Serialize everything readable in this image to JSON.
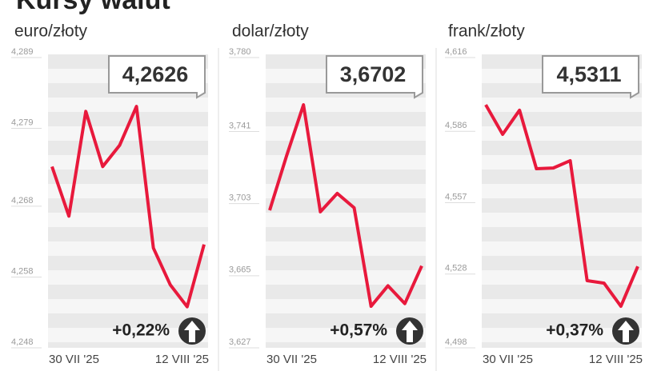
{
  "title": "Kursy walut",
  "chart_data": [
    {
      "type": "line",
      "title": "euro/złoty",
      "color": "#e8193c",
      "categories": [
        "30 VII '25",
        null,
        null,
        null,
        null,
        null,
        null,
        null,
        null,
        "12 VIII '25"
      ],
      "values": [
        4.2736,
        4.2666,
        4.2814,
        4.2736,
        4.2766,
        4.2821,
        4.2621,
        4.2569,
        4.2538,
        4.2626
      ],
      "ylim": [
        4.248,
        4.289
      ],
      "yticks": [
        {
          "value": 4.248,
          "label": "4,248"
        },
        {
          "value": 4.258,
          "label": "4,258"
        },
        {
          "value": 4.268,
          "label": "4,268"
        },
        {
          "value": 4.279,
          "label": "4,279"
        },
        {
          "value": 4.289,
          "label": "4,289"
        }
      ],
      "value_box": "4,2626",
      "change": "+0,22%"
    },
    {
      "type": "line",
      "title": "dolar/złoty",
      "color": "#e8193c",
      "categories": [
        "30 VII '25",
        null,
        null,
        null,
        null,
        null,
        null,
        null,
        null,
        "12 VIII '25"
      ],
      "values": [
        3.6995,
        3.7282,
        3.7551,
        3.6987,
        3.7084,
        3.7008,
        3.6489,
        3.6597,
        3.6503,
        3.6702
      ],
      "ylim": [
        3.627,
        3.78
      ],
      "yticks": [
        {
          "value": 3.627,
          "label": "3,627"
        },
        {
          "value": 3.665,
          "label": "3,665"
        },
        {
          "value": 3.703,
          "label": "3,703"
        },
        {
          "value": 3.741,
          "label": "3,741"
        },
        {
          "value": 3.78,
          "label": "3,780"
        }
      ],
      "value_box": "3,6702",
      "change": "+0,57%"
    },
    {
      "type": "line",
      "title": "frank/złoty",
      "color": "#e8193c",
      "categories": [
        "30 VII '25",
        null,
        null,
        null,
        null,
        null,
        null,
        null,
        null,
        "12 VIII '25"
      ],
      "values": [
        4.5968,
        4.5848,
        4.5946,
        4.5708,
        4.5711,
        4.5741,
        4.5253,
        4.5243,
        4.5149,
        4.5311
      ],
      "ylim": [
        4.498,
        4.616
      ],
      "yticks": [
        {
          "value": 4.498,
          "label": "4,498"
        },
        {
          "value": 4.528,
          "label": "4,528"
        },
        {
          "value": 4.557,
          "label": "4,557"
        },
        {
          "value": 4.586,
          "label": "4,586"
        },
        {
          "value": 4.616,
          "label": "4,616"
        }
      ],
      "value_box": "4,5311",
      "change": "+0,37%"
    }
  ]
}
